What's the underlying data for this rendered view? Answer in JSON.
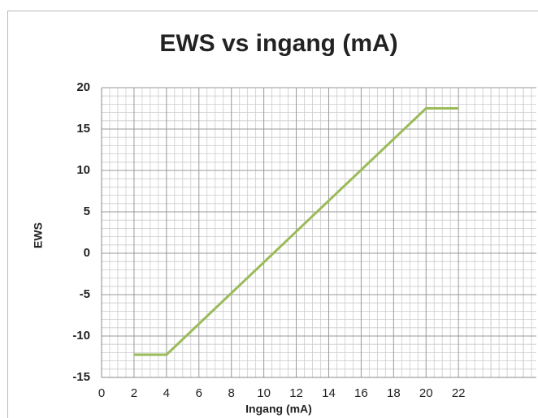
{
  "chart_data": {
    "type": "line",
    "title": "EWS vs ingang (mA)",
    "x_label": "Ingang (mA)",
    "y_label": "EWS",
    "series": [
      {
        "name": "EWS",
        "color": "#9bbb59",
        "x": [
          2,
          4,
          20,
          22
        ],
        "values": [
          -12.25,
          -12.25,
          17.5,
          17.5
        ]
      }
    ],
    "xlim": [
      0,
      26.8
    ],
    "xticks": [
      0,
      2,
      4,
      6,
      8,
      10,
      12,
      14,
      16,
      18,
      20,
      22
    ],
    "ylim": [
      -15,
      20
    ],
    "yticks": [
      -15,
      -10,
      -5,
      0,
      5,
      10,
      15,
      20
    ],
    "grid": true,
    "minor_grid": true
  }
}
